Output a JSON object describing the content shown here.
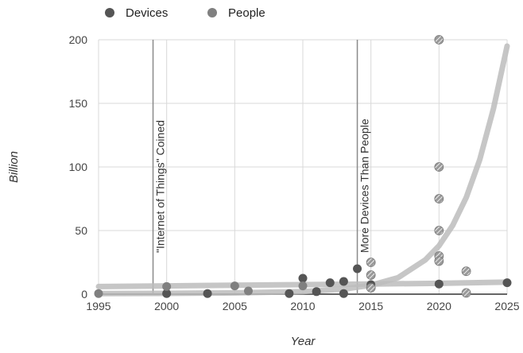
{
  "chart_data": {
    "type": "scatter",
    "xlabel": "Year",
    "ylabel": "Billion",
    "xlim": [
      1995,
      2025
    ],
    "ylim": [
      0,
      200
    ],
    "x_ticks": [
      1995,
      2000,
      2005,
      2010,
      2015,
      2020,
      2025
    ],
    "y_ticks": [
      0,
      50,
      100,
      150,
      200
    ],
    "grid": true,
    "legend_position": "top-left",
    "legend": [
      "Devices",
      "People"
    ],
    "series": [
      {
        "name": "Devices",
        "color": "#555555",
        "points": [
          [
            2000,
            0.5
          ],
          [
            2003,
            0.5
          ],
          [
            2009,
            0.5
          ],
          [
            2010,
            12.5
          ],
          [
            2011,
            2
          ],
          [
            2012,
            9
          ],
          [
            2013,
            10
          ],
          [
            2013,
            0.5
          ],
          [
            2014,
            20
          ],
          [
            2015,
            7.5
          ],
          [
            2020,
            8
          ],
          [
            2025,
            9
          ]
        ]
      },
      {
        "name": "People",
        "color": "#808080",
        "points": [
          [
            1995,
            0.5
          ],
          [
            2000,
            6
          ],
          [
            2005,
            6.5
          ],
          [
            2006,
            2.5
          ],
          [
            2010,
            6.5
          ],
          [
            2015,
            25
          ],
          [
            2015,
            15
          ],
          [
            2015,
            5
          ],
          [
            2020,
            200
          ],
          [
            2020,
            100
          ],
          [
            2020,
            75
          ],
          [
            2020,
            50
          ],
          [
            2020,
            30
          ],
          [
            2020,
            26
          ],
          [
            2022,
            18
          ],
          [
            2022,
            1
          ]
        ]
      }
    ],
    "trend_lines": [
      {
        "color": "#bcbcbc",
        "points": [
          [
            1995,
            6
          ],
          [
            2000,
            6.5
          ],
          [
            2005,
            7
          ],
          [
            2010,
            7.5
          ],
          [
            2015,
            8
          ],
          [
            2020,
            8.5
          ],
          [
            2025,
            9.5
          ]
        ]
      },
      {
        "color": "#bcbcbc",
        "points": [
          [
            1995,
            0.5
          ],
          [
            2000,
            0.6
          ],
          [
            2005,
            1
          ],
          [
            2010,
            2
          ],
          [
            2013,
            4
          ],
          [
            2015,
            7
          ],
          [
            2017,
            13
          ],
          [
            2019,
            27
          ],
          [
            2020,
            38
          ],
          [
            2021,
            54
          ],
          [
            2022,
            76
          ],
          [
            2023,
            106
          ],
          [
            2024,
            146
          ],
          [
            2025,
            195
          ]
        ]
      }
    ],
    "annotations": [
      {
        "x": 1999,
        "text": "\"Internet of Things\" Coined"
      },
      {
        "x": 2014,
        "text": "More Devices Than People"
      }
    ]
  }
}
